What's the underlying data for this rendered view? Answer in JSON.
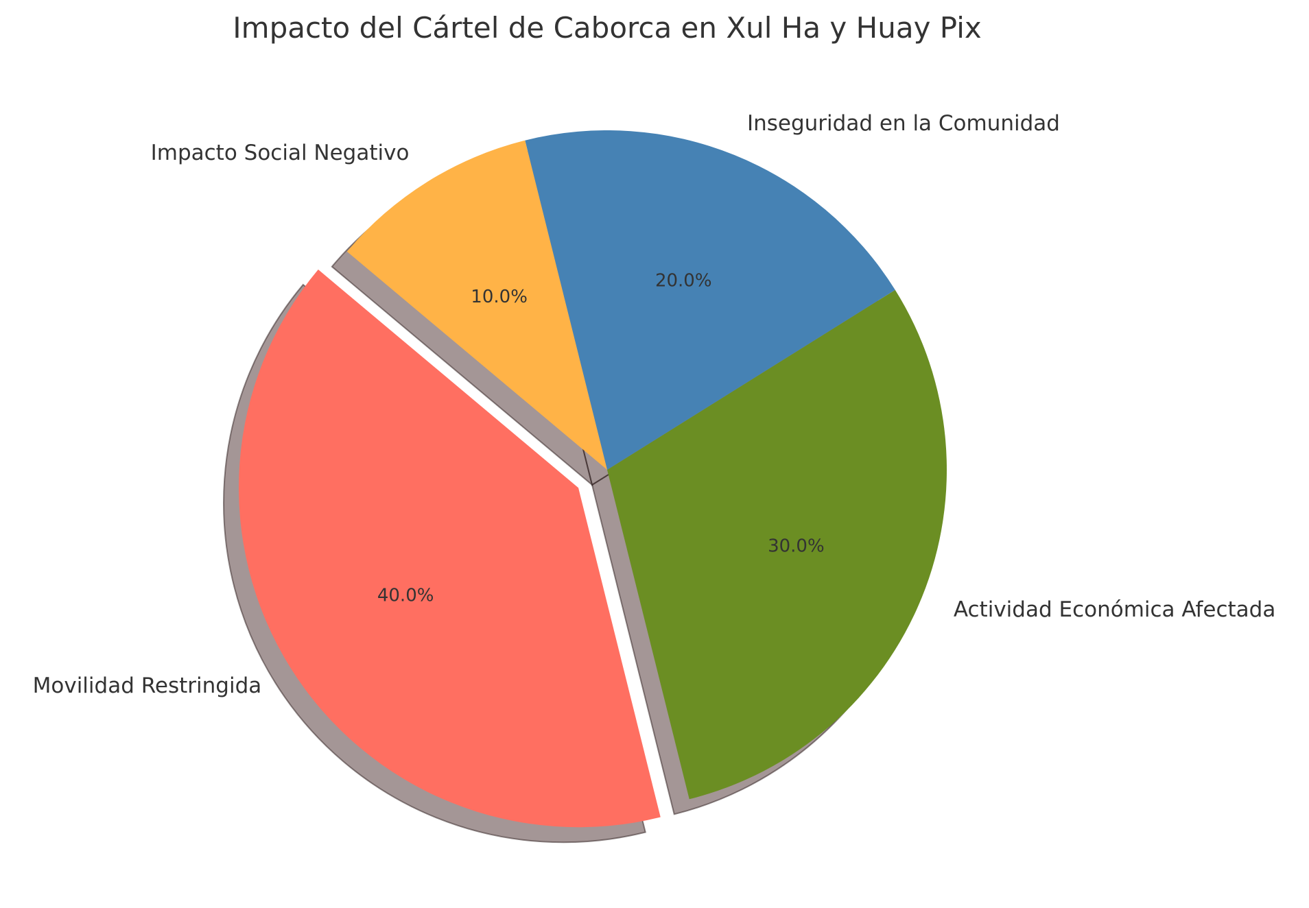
{
  "chart_data": {
    "type": "pie",
    "title": "Impacto del Cártel de Caborca en Xul Ha y Huay Pix",
    "start_angle": 140,
    "direction": "counterclockwise",
    "shadow": true,
    "slices": [
      {
        "label": "Movilidad Restringida",
        "value": 40,
        "pct_label": "40.0%",
        "color": "#FF6F61",
        "explode": 0.1
      },
      {
        "label": "Actividad Económica Afectada",
        "value": 30,
        "pct_label": "30.0%",
        "color": "#6B8E23",
        "explode": 0
      },
      {
        "label": "Inseguridad en la Comunidad",
        "value": 20,
        "pct_label": "20.0%",
        "color": "#4682B4",
        "explode": 0
      },
      {
        "label": "Impacto Social Negativo",
        "value": 10,
        "pct_label": "10.0%",
        "color": "#FFB347",
        "explode": 0
      }
    ]
  }
}
